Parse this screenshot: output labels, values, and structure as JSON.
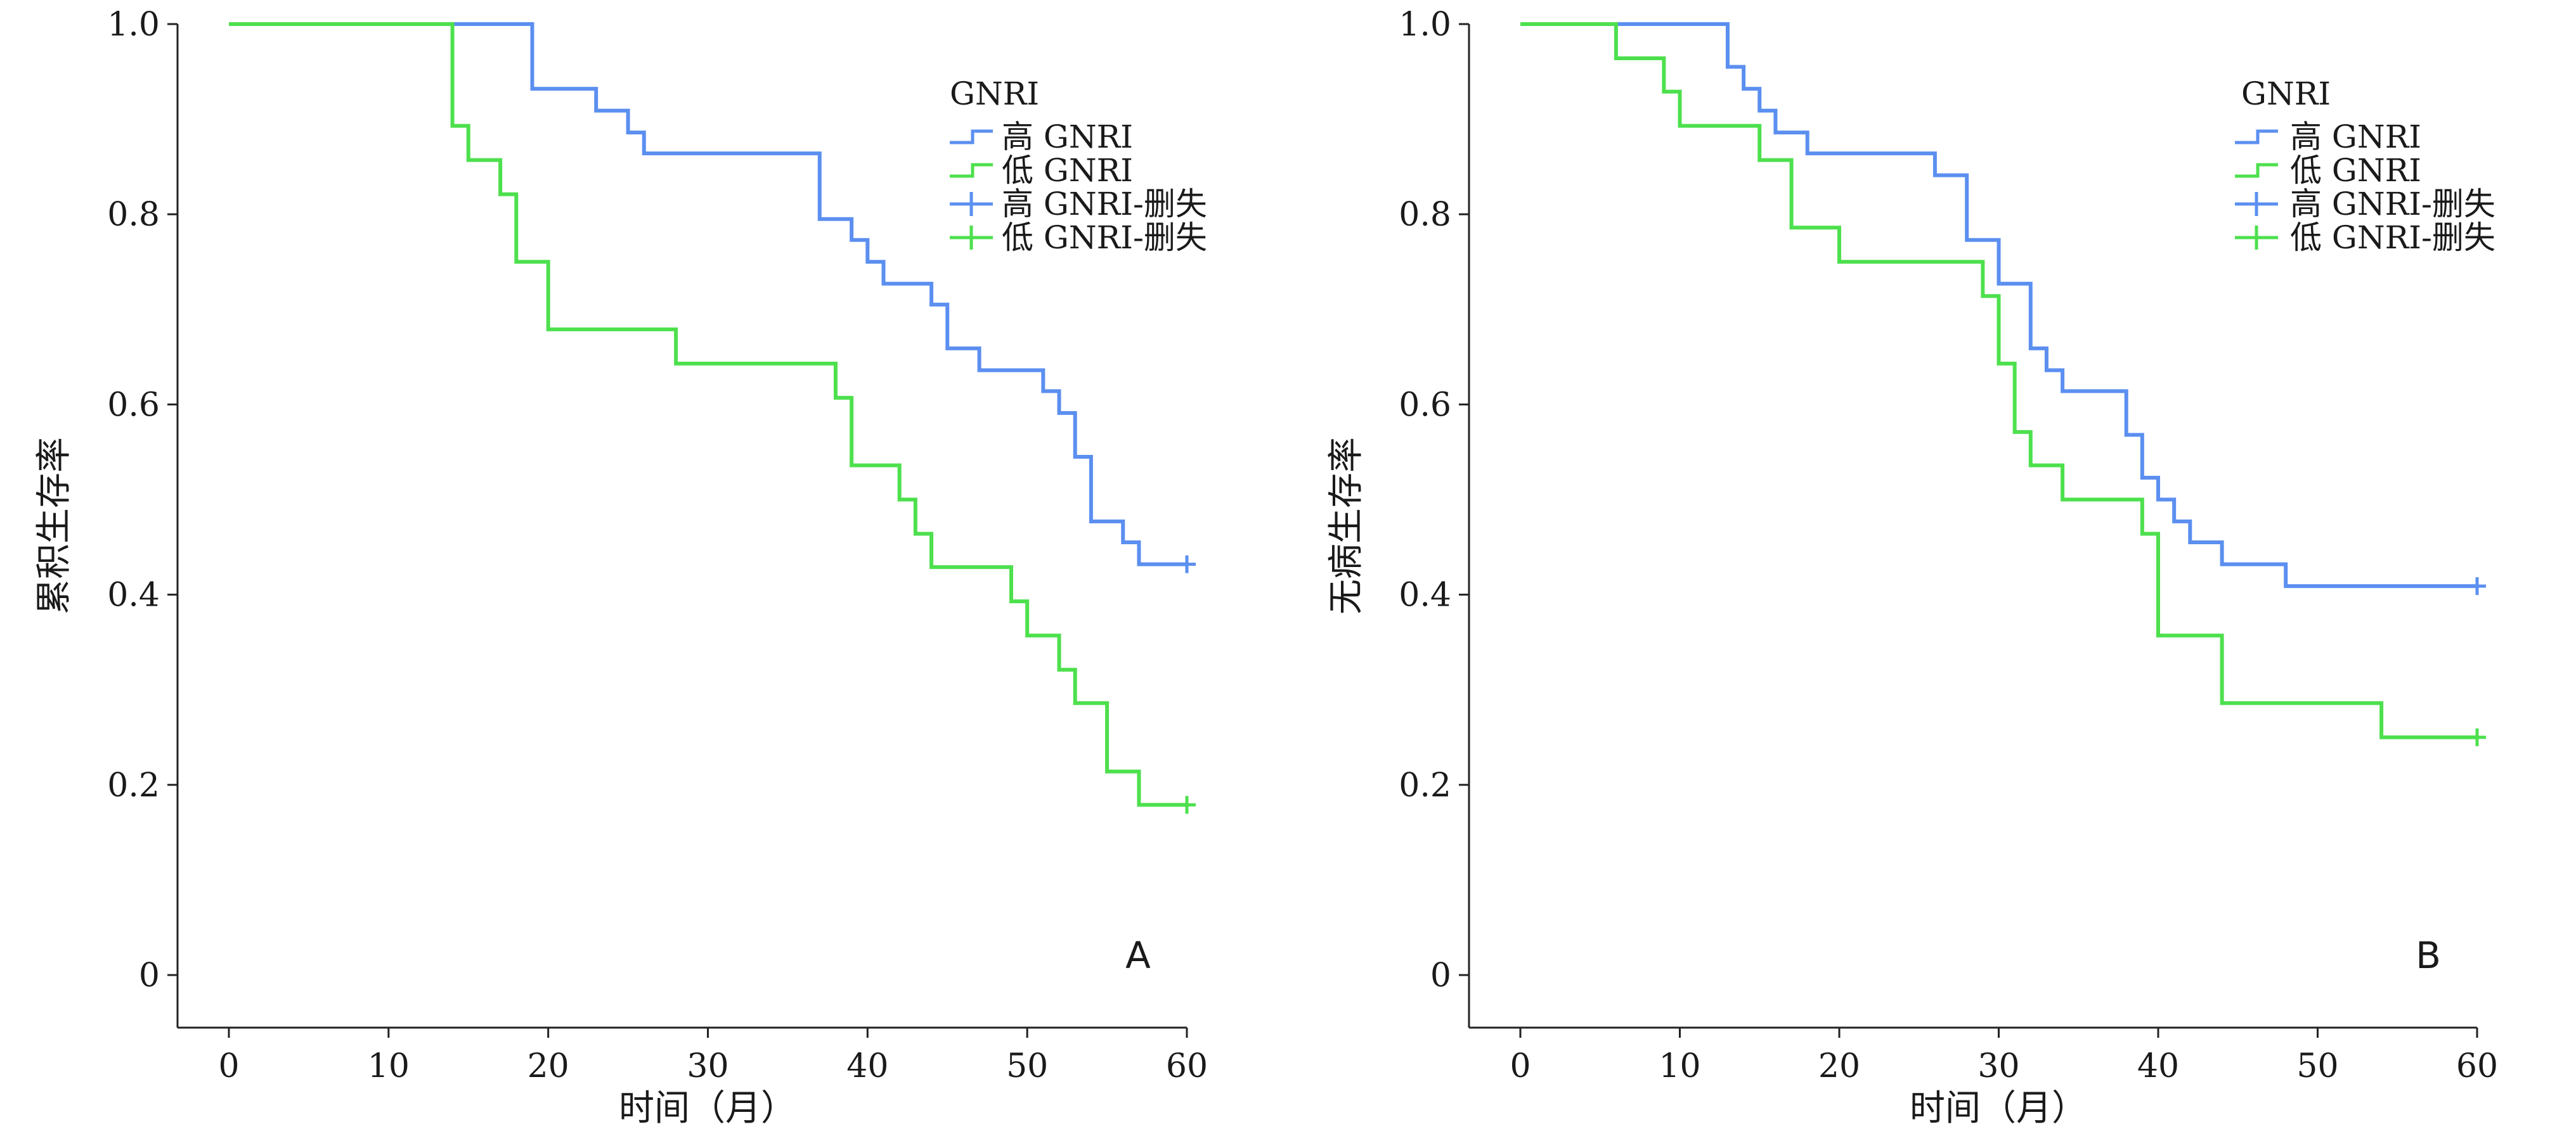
{
  "colors": {
    "high": "#5b8ff0",
    "low": "#4de04d",
    "axis": "#222222"
  },
  "legend": {
    "title": "GNRI",
    "entries": [
      {
        "label": "高 GNRI",
        "kind": "line",
        "series": "high"
      },
      {
        "label": "低 GNRI",
        "kind": "line",
        "series": "low"
      },
      {
        "label": "高 GNRI-删失",
        "kind": "censor",
        "series": "high"
      },
      {
        "label": "低 GNRI-删失",
        "kind": "censor",
        "series": "low"
      }
    ]
  },
  "chart_data": [
    {
      "type": "line",
      "panel": "A",
      "xlabel": "时间（月）",
      "ylabel": "累积生存率",
      "xlim": [
        0,
        60
      ],
      "ylim": [
        0,
        1
      ],
      "xticks": [
        0,
        10,
        20,
        30,
        40,
        50,
        60
      ],
      "yticks": [
        0,
        0.2,
        0.4,
        0.6,
        0.8,
        1.0
      ],
      "ytick_labels": [
        "0",
        "0.2",
        "0.4",
        "0.6",
        "0.8",
        "1.0"
      ],
      "series": [
        {
          "name": "高 GNRI",
          "key": "high",
          "step_x": [
            0,
            19,
            23,
            25,
            26,
            37,
            39,
            40,
            41,
            42,
            44,
            45,
            47,
            51,
            52,
            53,
            54,
            56,
            57,
            60
          ],
          "step_y": [
            1.0,
            0.932,
            0.909,
            0.886,
            0.864,
            0.795,
            0.773,
            0.75,
            0.727,
            0.727,
            0.705,
            0.659,
            0.636,
            0.614,
            0.591,
            0.545,
            0.477,
            0.455,
            0.432,
            0.432
          ],
          "censored": [
            [
              60,
              0.432
            ]
          ]
        },
        {
          "name": "低 GNRI",
          "key": "low",
          "step_x": [
            0,
            14,
            15,
            17,
            18,
            20,
            28,
            38,
            39,
            42,
            43,
            44,
            49,
            50,
            52,
            53,
            55,
            57,
            60
          ],
          "step_y": [
            1.0,
            0.893,
            0.857,
            0.821,
            0.75,
            0.679,
            0.643,
            0.607,
            0.536,
            0.5,
            0.464,
            0.429,
            0.393,
            0.357,
            0.321,
            0.286,
            0.214,
            0.179,
            0.179
          ],
          "censored": [
            [
              60,
              0.179
            ]
          ]
        }
      ]
    },
    {
      "type": "line",
      "panel": "B",
      "xlabel": "时间（月）",
      "ylabel": "无病生存率",
      "xlim": [
        0,
        60
      ],
      "ylim": [
        0,
        1
      ],
      "xticks": [
        0,
        10,
        20,
        30,
        40,
        50,
        60
      ],
      "yticks": [
        0,
        0.2,
        0.4,
        0.6,
        0.8,
        1.0
      ],
      "ytick_labels": [
        "0",
        "0.2",
        "0.4",
        "0.6",
        "0.8",
        "1.0"
      ],
      "series": [
        {
          "name": "高 GNRI",
          "key": "high",
          "step_x": [
            0,
            13,
            14,
            15,
            16,
            18,
            26,
            28,
            30,
            32,
            33,
            34,
            38,
            39,
            40,
            41,
            42,
            44,
            48,
            60
          ],
          "step_y": [
            1.0,
            0.955,
            0.932,
            0.909,
            0.886,
            0.864,
            0.841,
            0.773,
            0.727,
            0.659,
            0.636,
            0.614,
            0.568,
            0.523,
            0.5,
            0.477,
            0.455,
            0.432,
            0.409,
            0.409
          ],
          "censored": [
            [
              60,
              0.409
            ]
          ]
        },
        {
          "name": "低 GNRI",
          "key": "low",
          "step_x": [
            0,
            6,
            9,
            10,
            15,
            17,
            20,
            29,
            30,
            31,
            32,
            34,
            39,
            40,
            44,
            54,
            60
          ],
          "step_y": [
            1.0,
            0.964,
            0.929,
            0.893,
            0.857,
            0.786,
            0.75,
            0.714,
            0.643,
            0.571,
            0.536,
            0.5,
            0.464,
            0.357,
            0.286,
            0.25,
            0.25
          ],
          "censored": [
            [
              60,
              0.25
            ]
          ]
        }
      ]
    }
  ]
}
